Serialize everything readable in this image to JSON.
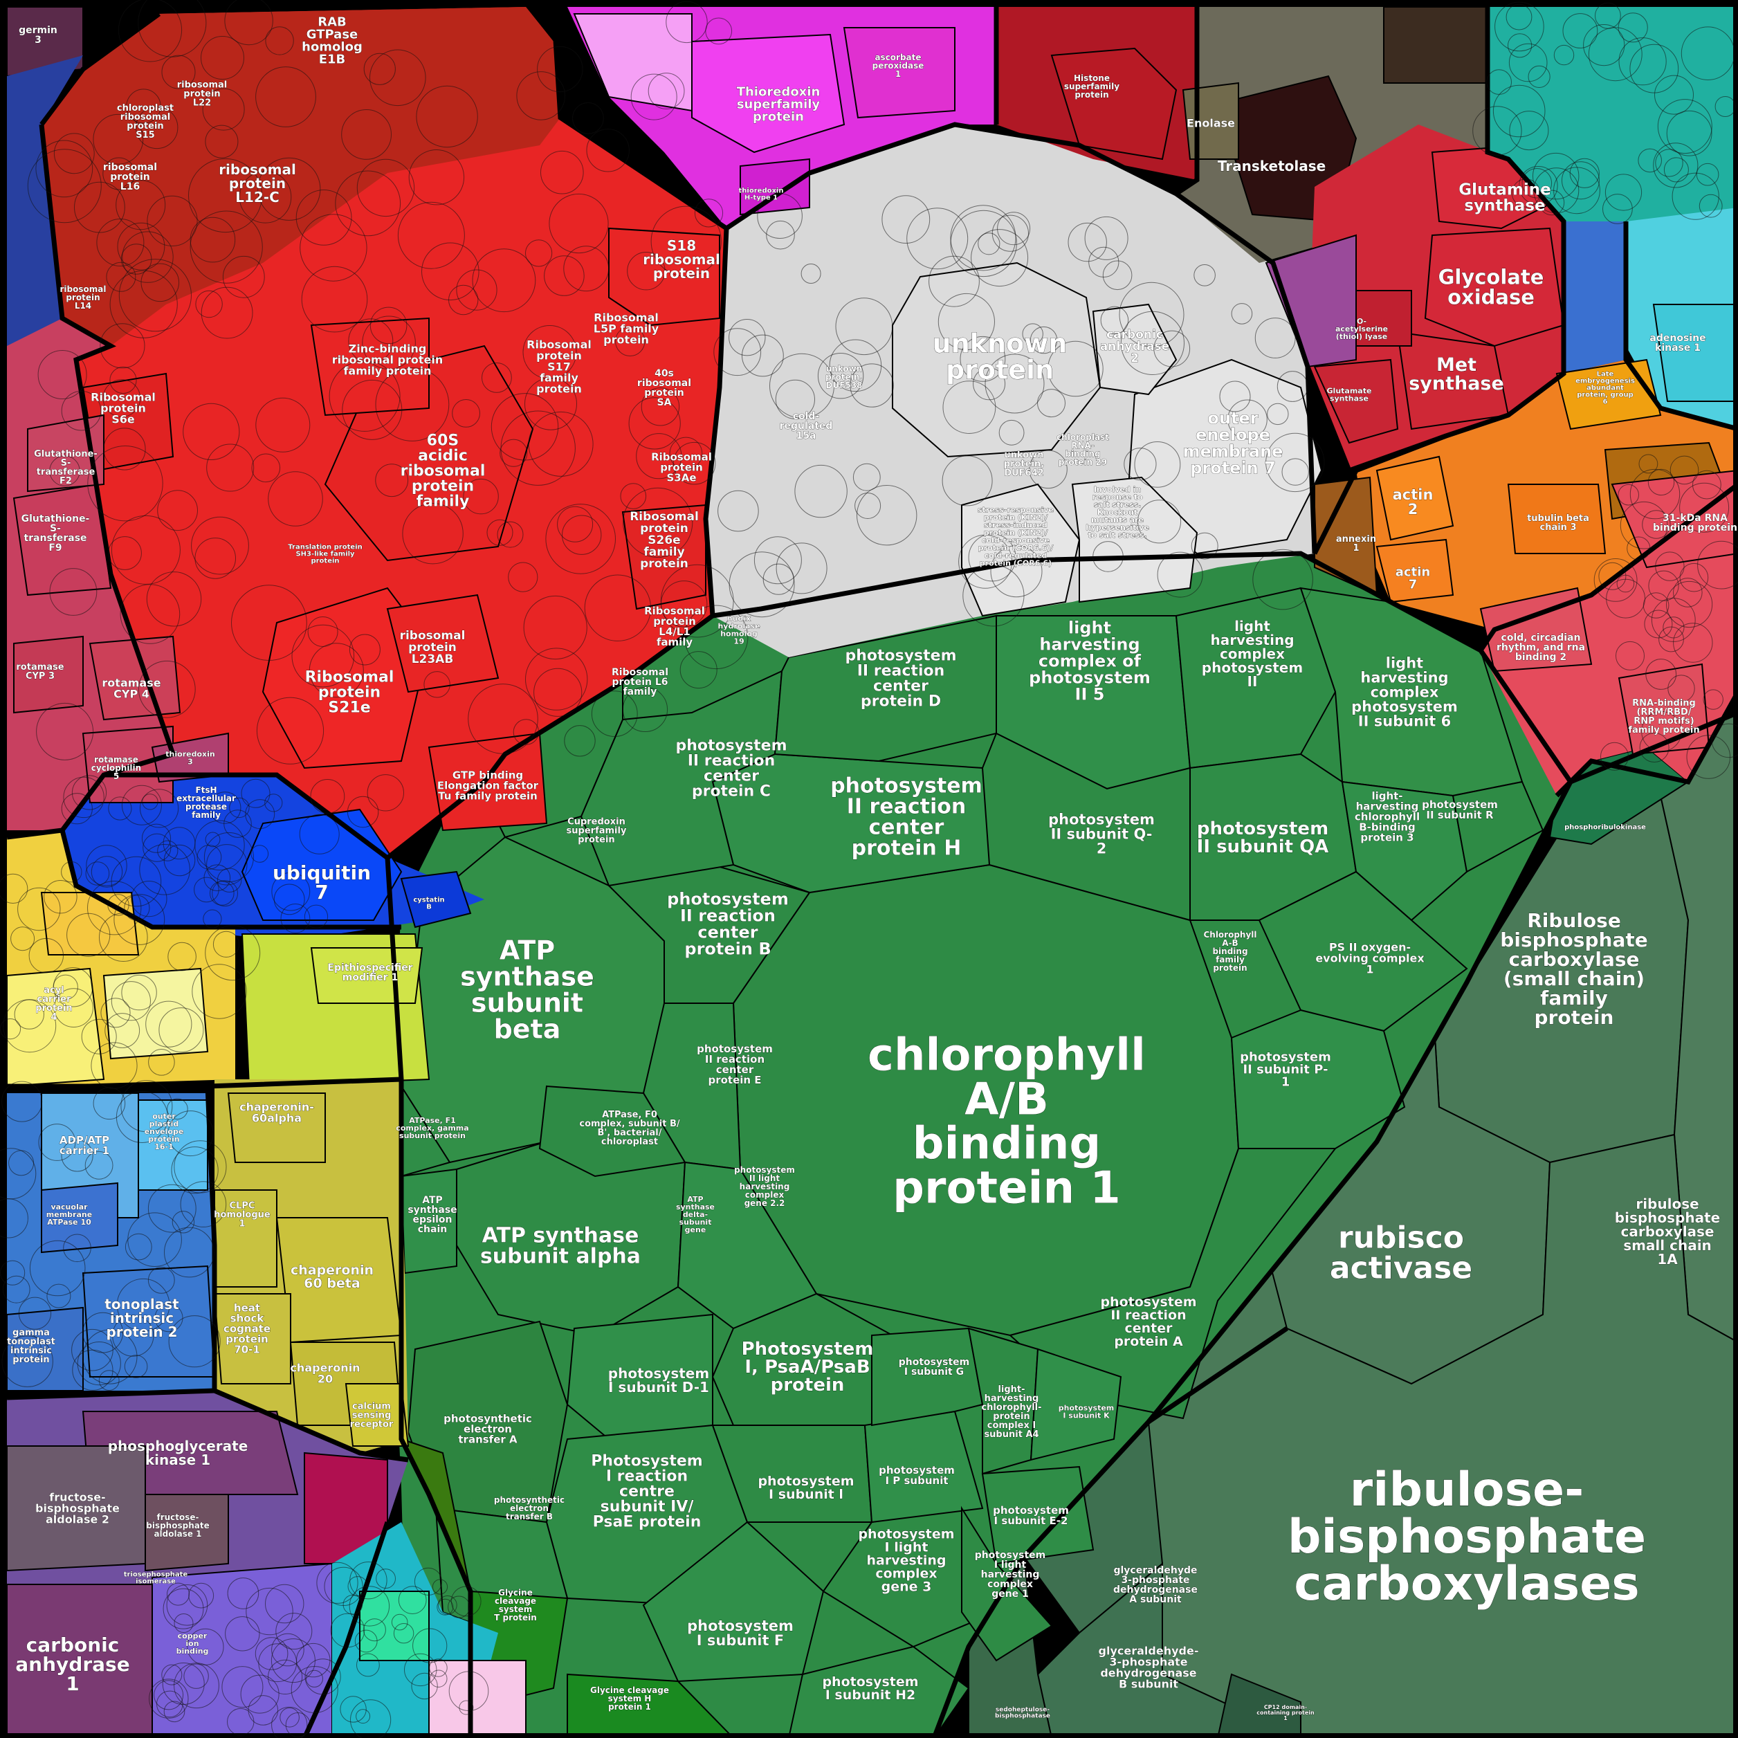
{
  "labels": {
    "rubisco_large": [
      "ribulose-",
      "bisphosphate",
      "carboxylases"
    ],
    "rubisco_small_family": [
      "Ribulose",
      "bisphosphate",
      "carboxylase",
      "(small chain)",
      "family",
      "protein"
    ],
    "rubisco_activase": [
      "rubisco",
      "activase"
    ],
    "rbcs_1a": [
      "ribulose",
      "bisphosphate",
      "carboxylase",
      "small chain",
      "1A"
    ],
    "gapdh_a": [
      "glyceraldehyde",
      "3-phosphate",
      "dehydrogenase",
      "A subunit"
    ],
    "gapdh_b": [
      "glyceraldehyde-",
      "3-phosphate",
      "dehydrogenase",
      "B subunit"
    ],
    "cab1": [
      "chlorophyll",
      "A/B",
      "binding",
      "protein 1"
    ],
    "atp_beta": [
      "ATP",
      "synthase",
      "subunit",
      "beta"
    ],
    "atp_alpha": [
      "ATP synthase",
      "subunit alpha"
    ],
    "psb_h": [
      "photosystem",
      "II reaction",
      "center",
      "protein H"
    ],
    "psb_qa": [
      "photosystem",
      "II subunit QA"
    ],
    "psb_b": [
      "photosystem",
      "II reaction",
      "center",
      "protein B"
    ],
    "psb_c": [
      "photosystem",
      "II reaction",
      "center",
      "protein C"
    ],
    "psb_d": [
      "photosystem",
      "II reaction",
      "center",
      "protein D"
    ],
    "psb_a": [
      "photosystem",
      "II reaction",
      "center",
      "protein A"
    ],
    "psb_e": [
      "photosystem",
      "II reaction",
      "center",
      "protein E"
    ],
    "psb_q2": [
      "photosystem",
      "II subunit Q-",
      "2"
    ],
    "psb_p1": [
      "photosystem",
      "II subunit P-",
      "1"
    ],
    "psb_r": [
      "photosystem",
      "II subunit R"
    ],
    "lhc_ps2_5": [
      "light",
      "harvesting",
      "complex of",
      "photosystem",
      "II 5"
    ],
    "lhc_ps2": [
      "light",
      "harvesting",
      "complex",
      "photosystem",
      "II"
    ],
    "lhc_ps2_6": [
      "light",
      "harvesting",
      "complex",
      "photosystem",
      "II subunit 6"
    ],
    "lhc_b3": [
      "light-",
      "harvesting",
      "chlorophyll",
      "B-binding",
      "protein 3"
    ],
    "ps2_oec1": [
      "PS II oxygen-",
      "evolving complex",
      "1"
    ],
    "cab_a6": [
      "Chlorophyll",
      "A-B",
      "binding",
      "family",
      "protein"
    ],
    "psa_ab": [
      "Photosystem",
      "I, PsaA/PsaB",
      "protein"
    ],
    "psa_d1": [
      "photosystem",
      "I subunit D-1"
    ],
    "psa_e": [
      "Photosystem",
      "I reaction",
      "centre",
      "subunit IV/",
      "PsaE protein"
    ],
    "psa_l": [
      "photosystem",
      "I subunit l"
    ],
    "psa_f": [
      "photosystem",
      "I subunit F"
    ],
    "psa_h2": [
      "photosystem",
      "I subunit H2"
    ],
    "psa_p": [
      "photosystem",
      "I P subunit"
    ],
    "psa_g": [
      "photosystem",
      "I subunit G"
    ],
    "psa_e2": [
      "photosystem",
      "I subunit E-2"
    ],
    "psa_k": [
      "photosystem",
      "I subunit K"
    ],
    "lhca4": [
      "light-",
      "harvesting",
      "chlorophyll-",
      "protein",
      "complex I",
      "subunit A4"
    ],
    "lhca3": [
      "photosystem",
      "I light",
      "harvesting",
      "complex",
      "gene 3"
    ],
    "lhca1": [
      "photosystem",
      "I light",
      "harvesting",
      "complex",
      "gene 1"
    ],
    "lhca22": [
      "photosystem",
      "II light",
      "harvesting",
      "complex",
      "gene 2.2"
    ],
    "pet_a": [
      "photosynthetic",
      "electron",
      "transfer A"
    ],
    "pet_b": [
      "photosynthetic",
      "electron",
      "transfer B"
    ],
    "atp_f0": [
      "ATPase, F0",
      "complex, subunit B/",
      "B', bacterial/",
      "chloroplast"
    ],
    "atp_f1": [
      "ATPase, F1",
      "complex, gamma",
      "subunit protein"
    ],
    "atp_eps": [
      "ATP",
      "synthase",
      "epsilon",
      "chain"
    ],
    "atp_delta": [
      "ATP",
      "synthase",
      "delta-",
      "subunit",
      "gene"
    ],
    "cupredoxin": [
      "Cupredoxin",
      "superfamily",
      "protein"
    ],
    "gdc_t": [
      "Glycine",
      "cleavage",
      "system",
      "T protein"
    ],
    "gdc_h": [
      "Glycine cleavage",
      "system H",
      "protein 1"
    ],
    "unknown": [
      "unknown",
      "protein"
    ],
    "oep7": [
      "outer",
      "enelope",
      "membrane",
      "protein 7"
    ],
    "ca2": [
      "carbonic",
      "anhydrase",
      "2"
    ],
    "stress": [
      "stress-responsive",
      "protein (KIN2)/",
      "stress-induced",
      "protein (KIN2)/",
      "cold-responsive",
      "protein (COR6.6)/",
      "cold-regulated",
      "protein (COR6.6)"
    ],
    "salt": [
      "Involved in",
      "response to",
      "salt stress.",
      "Knockout",
      "mutants are",
      "hypersensitive",
      "to salt stress."
    ],
    "cold15a": [
      "cold-",
      "regulated",
      "15a"
    ],
    "duf538": [
      "unkown",
      "protein,",
      "DUF538"
    ],
    "duf642": [
      "unkown",
      "protein,",
      "DUF642"
    ],
    "rnp29": [
      "chloroplast",
      "RNA-",
      "binding",
      "protein 29"
    ],
    "s18": [
      "S18",
      "ribosomal",
      "protein"
    ],
    "rp60s": [
      "60S",
      "acidic",
      "ribosomal",
      "protein",
      "family"
    ],
    "s21e": [
      "Ribosomal",
      "protein",
      "S21e"
    ],
    "l12c": [
      "ribosomal",
      "protein",
      "L12-C"
    ],
    "l16": [
      "ribosomal",
      "protein",
      "L16"
    ],
    "l22": [
      "ribosomal",
      "protein",
      "L22"
    ],
    "s15": [
      "chloroplast",
      "ribosomal",
      "protein",
      "S15"
    ],
    "l14": [
      "ribosomal",
      "protein",
      "L14"
    ],
    "s6e": [
      "Ribosomal",
      "protein",
      "S6e"
    ],
    "l23ab": [
      "ribosomal",
      "protein",
      "L23AB"
    ],
    "s17": [
      "Ribosomal",
      "protein",
      "S17",
      "family",
      "protein"
    ],
    "s26e": [
      "Ribosomal",
      "protein",
      "S26e",
      "family",
      "protein"
    ],
    "zinc": [
      "Zinc-binding",
      "ribosomal protein",
      "family protein"
    ],
    "rab": [
      "RAB",
      "GTPase",
      "homolog",
      "E1B"
    ],
    "ef_tu": [
      "GTP binding",
      "Elongation factor",
      "Tu family protein"
    ],
    "l5p": [
      "Ribosomal",
      "L5P family",
      "protein"
    ],
    "s5a": [
      "40s",
      "ribosomal",
      "protein",
      "SA"
    ],
    "s3ae": [
      "Ribosomal",
      "protein",
      "S3Ae"
    ],
    "l4": [
      "Ribosomal",
      "protein",
      "L4/L1",
      "family"
    ],
    "ubq7": [
      "ubiquitin",
      "7"
    ],
    "ftsh": [
      "FtsH",
      "extracellular",
      "protease",
      "family"
    ],
    "thioredoxin": [
      "Thioredoxin",
      "superfamily",
      "protein"
    ],
    "ascorbate": [
      "ascorbate",
      "peroxidase",
      "1"
    ],
    "transketolase": [
      "Transketolase"
    ],
    "enolase": [
      "Enolase"
    ],
    "histone": [
      "Histone",
      "superfamily",
      "protein"
    ],
    "gs": [
      "Glutamine",
      "synthase"
    ],
    "go": [
      "Glycolate",
      "oxidase"
    ],
    "met": [
      "Met",
      "synthase"
    ],
    "actin2": [
      "actin",
      "2"
    ],
    "actin7": [
      "actin",
      "7"
    ],
    "tubulin_b": [
      "tubulin beta",
      "chain 3"
    ],
    "chaperonin60b": [
      "chaperonin",
      "60 beta"
    ],
    "chaperonin60a": [
      "chaperonin-",
      "60alpha"
    ],
    "chaperonin20": [
      "chaperonin",
      "20"
    ],
    "hsc70": [
      "heat",
      "shock",
      "cognate",
      "protein",
      "70-1"
    ],
    "clpc": [
      "CLPC",
      "homologue",
      "1"
    ],
    "calcium": [
      "calcium",
      "sensing",
      "receptor"
    ],
    "tip2": [
      "tonoplast",
      "intrinsic",
      "protein 2"
    ],
    "adp_atp": [
      "ADP/ATP",
      "carrier 1"
    ],
    "gamma_tip": [
      "gamma",
      "tonoplast",
      "intrinsic",
      "protein"
    ],
    "pgk1": [
      "phosphoglycerate",
      "kinase 1"
    ],
    "fba2": [
      "fructose-",
      "bisphosphate",
      "aldolase 2"
    ],
    "fba1": [
      "fructose-",
      "bisphosphate",
      "aldolase 1"
    ],
    "ca1": [
      "carbonic",
      "anhydrase",
      "1"
    ],
    "gst_f9": [
      "Glutathione-",
      "S-",
      "transferase",
      "F9"
    ],
    "gst_f2": [
      "Glutathione-",
      "S-",
      "transferase",
      "F2"
    ],
    "cyp4": [
      "rotamase",
      "CYP 4"
    ],
    "cyp3": [
      "rotamase",
      "CYP 3"
    ],
    "cyclophilin": [
      "rotamase",
      "cyclophilin",
      "5"
    ],
    "germin": [
      "germin",
      "3"
    ],
    "acyl": [
      "acyl",
      "carrier",
      "protein",
      "4"
    ],
    "annexin": [
      "annexin",
      "1"
    ],
    "rbp31": [
      "31-kDa RNA",
      "binding protein"
    ],
    "cold_rna2": [
      "cold, circadian",
      "rhythm, and rna",
      "binding 2"
    ],
    "rrm": [
      "RNA-binding",
      "(RRM/RBD/",
      "RNP motifs)",
      "family protein"
    ],
    "prk": [
      "phosphoribulokinase"
    ],
    "sbpase": [
      "sedoheptulose-",
      "bisphosphatase"
    ],
    "cp12": [
      "CP12 domain-",
      "containing protein",
      "1"
    ],
    "epithio": [
      "Epithiospecifier",
      "modifier 1"
    ],
    "lea": [
      "Late",
      "embryogenesis",
      "abundant",
      "protein, group",
      "6"
    ],
    "adk": [
      "adenosine",
      "kinase 1"
    ],
    "thioredoxin_h": [
      "thioredoxin",
      "H-type 1"
    ],
    "nudix": [
      "nudix",
      "hydrolase",
      "homolog",
      "19"
    ],
    "cystatin": [
      "cystatin",
      "B"
    ],
    "thioredoxin3": [
      "thioredoxin",
      "3"
    ],
    "vacuolar": [
      "vacuolar",
      "membrane",
      "ATPase 10"
    ],
    "outer_env": [
      "outer",
      "plastid",
      "envelope",
      "protein",
      "16-1"
    ],
    "copper": [
      "copper",
      "ion",
      "binding"
    ],
    "tpi": [
      "triosephosphate",
      "isomerase"
    ],
    "translation": [
      "Translation protein",
      "SH3-like family",
      "protein"
    ],
    "rbp_l6": [
      "Ribosomal",
      "protein L6",
      "family"
    ],
    "glutamate": [
      "Glutamate",
      "synthase"
    ],
    "o_acetyl": [
      "O-",
      "acetylserine",
      "(thiol) lyase"
    ]
  },
  "colors": {
    "rubisco": "#4a7a58",
    "photosynthesis": "#2e8b45",
    "ribosome": "#e02020",
    "unknown": "#e0e0e0",
    "ubiquitin": "#1040e0",
    "thioredoxin": "#e030e0",
    "chaperone": "#c8c040",
    "transport": "#3070d0",
    "glycolysis": "#7050a0",
    "stress": "#c03a5a",
    "cytoskeleton": "#f08020",
    "amino_acid": "#d02838"
  }
}
